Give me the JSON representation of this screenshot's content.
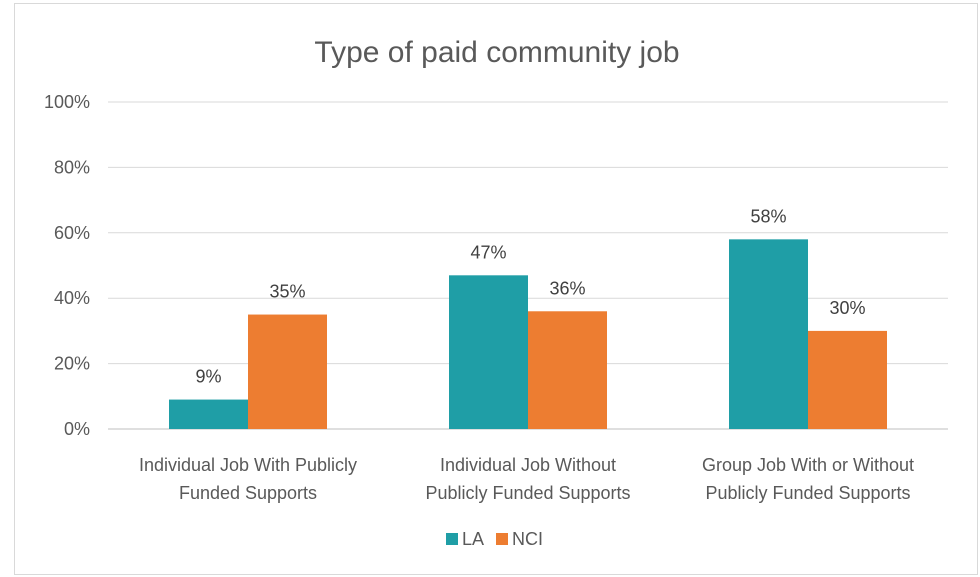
{
  "chart_data": {
    "type": "bar",
    "title": "Type of paid community job",
    "categories": [
      [
        "Individual Job With Publicly",
        "Funded Supports"
      ],
      [
        "Individual Job Without",
        "Publicly Funded Supports"
      ],
      [
        "Group Job With or Without",
        "Publicly Funded Supports"
      ]
    ],
    "series": [
      {
        "name": "LA",
        "color": "#1f9ea6",
        "values": [
          9,
          47,
          58
        ],
        "labels": [
          "9%",
          "47%",
          "58%"
        ]
      },
      {
        "name": "NCI",
        "color": "#ed7d31",
        "values": [
          35,
          36,
          30
        ],
        "labels": [
          "35%",
          "36%",
          "30%"
        ]
      }
    ],
    "ylim": [
      0,
      100
    ],
    "yticks": [
      "0%",
      "20%",
      "40%",
      "60%",
      "80%",
      "100%"
    ],
    "grid": true,
    "legend_position": "bottom"
  }
}
